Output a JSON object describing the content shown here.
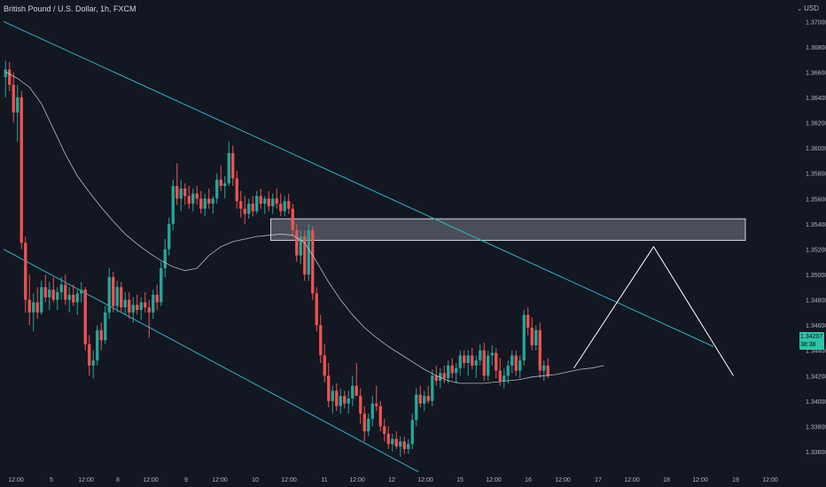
{
  "header": {
    "title": "British Pound / U.S. Dollar, 1h, FXCM",
    "currency": "USD"
  },
  "price_label": {
    "price": "1.34207",
    "countdown": "38:38"
  },
  "colors": {
    "background": "#131722",
    "bull": "#26a69a",
    "bear": "#ef5350",
    "channel": "#2bb6c9",
    "ma": "#d1d4dc",
    "projection": "#ffffff",
    "zone_fill": "#787b86",
    "axis_text": "#b2b5be"
  },
  "chart_data": {
    "type": "candlestick",
    "title": "British Pound / U.S. Dollar, 1h, FXCM",
    "xlabel": "",
    "ylabel": "",
    "ylim": [
      1.3325,
      1.371
    ],
    "y_ticks": [
      "1.33400",
      "1.33600",
      "1.33800",
      "1.34000",
      "1.34200",
      "1.34400",
      "1.34600",
      "1.34800",
      "1.35000",
      "1.35200",
      "1.35400",
      "1.35600",
      "1.35800",
      "1.36000",
      "1.36200",
      "1.36400",
      "1.36600",
      "1.36800",
      "1.37000"
    ],
    "x_ticks": [
      "12:00",
      "5",
      "12:00",
      "8",
      "12:00",
      "9",
      "12:00",
      "10",
      "12:00",
      "11",
      "12:00",
      "12",
      "12:00",
      "15",
      "12:00",
      "16",
      "12:00",
      "17",
      "12:00",
      "18",
      "12:00",
      "19",
      "12:00"
    ],
    "grid": false,
    "series": [
      {
        "style": "candles",
        "values": [
          [
            1.3656,
            1.3669,
            1.364,
            1.3662
          ],
          [
            1.3662,
            1.3668,
            1.3645,
            1.365
          ],
          [
            1.365,
            1.366,
            1.362,
            1.3628
          ],
          [
            1.3628,
            1.365,
            1.3605,
            1.364
          ],
          [
            1.364,
            1.3645,
            1.352,
            1.3525
          ],
          [
            1.3525,
            1.353,
            1.347,
            1.348
          ],
          [
            1.348,
            1.35,
            1.346,
            1.347
          ],
          [
            1.347,
            1.3485,
            1.3455,
            1.3478
          ],
          [
            1.3478,
            1.349,
            1.3465,
            1.347
          ],
          [
            1.347,
            1.3495,
            1.3468,
            1.349
          ],
          [
            1.349,
            1.35,
            1.3478,
            1.3482
          ],
          [
            1.3482,
            1.3494,
            1.3472,
            1.3488
          ],
          [
            1.3488,
            1.3498,
            1.3478,
            1.348
          ],
          [
            1.348,
            1.349,
            1.3472,
            1.3486
          ],
          [
            1.3486,
            1.3498,
            1.348,
            1.3492
          ],
          [
            1.3492,
            1.35,
            1.3476,
            1.348
          ],
          [
            1.348,
            1.349,
            1.347,
            1.3484
          ],
          [
            1.3484,
            1.3492,
            1.3475,
            1.3478
          ],
          [
            1.3478,
            1.3488,
            1.3468,
            1.3485
          ],
          [
            1.3485,
            1.3494,
            1.3478,
            1.3488
          ],
          [
            1.3488,
            1.349,
            1.344,
            1.3445
          ],
          [
            1.3445,
            1.3452,
            1.342,
            1.3428
          ],
          [
            1.3428,
            1.344,
            1.3418,
            1.3432
          ],
          [
            1.3432,
            1.346,
            1.3428,
            1.3456
          ],
          [
            1.3456,
            1.3462,
            1.344,
            1.3448
          ],
          [
            1.3448,
            1.3475,
            1.3445,
            1.347
          ],
          [
            1.347,
            1.3505,
            1.3465,
            1.3498
          ],
          [
            1.3498,
            1.3502,
            1.347,
            1.3475
          ],
          [
            1.3475,
            1.3495,
            1.347,
            1.349
          ],
          [
            1.349,
            1.3494,
            1.347,
            1.3474
          ],
          [
            1.3474,
            1.3486,
            1.3468,
            1.348
          ],
          [
            1.348,
            1.3486,
            1.3465,
            1.347
          ],
          [
            1.347,
            1.3482,
            1.3462,
            1.3476
          ],
          [
            1.3476,
            1.3484,
            1.3468,
            1.3472
          ],
          [
            1.3472,
            1.3482,
            1.3464,
            1.3478
          ],
          [
            1.3478,
            1.3486,
            1.347,
            1.3474
          ],
          [
            1.3474,
            1.348,
            1.345,
            1.347
          ],
          [
            1.347,
            1.3488,
            1.3465,
            1.3484
          ],
          [
            1.3484,
            1.3492,
            1.3472,
            1.3478
          ],
          [
            1.3478,
            1.351,
            1.3475,
            1.3505
          ],
          [
            1.3505,
            1.3528,
            1.3498,
            1.352
          ],
          [
            1.352,
            1.3545,
            1.3515,
            1.354
          ],
          [
            1.354,
            1.3575,
            1.3535,
            1.357
          ],
          [
            1.357,
            1.3588,
            1.3555,
            1.356
          ],
          [
            1.356,
            1.3575,
            1.355,
            1.3568
          ],
          [
            1.3568,
            1.3572,
            1.3555,
            1.3562
          ],
          [
            1.3562,
            1.357,
            1.3552,
            1.3556
          ],
          [
            1.3556,
            1.3568,
            1.355,
            1.3564
          ],
          [
            1.3564,
            1.357,
            1.3555,
            1.356
          ],
          [
            1.356,
            1.3566,
            1.3548,
            1.3552
          ],
          [
            1.3552,
            1.3564,
            1.3546,
            1.356
          ],
          [
            1.356,
            1.3568,
            1.3552,
            1.3556
          ],
          [
            1.3556,
            1.3562,
            1.3548,
            1.356
          ],
          [
            1.356,
            1.358,
            1.3556,
            1.3575
          ],
          [
            1.3575,
            1.3586,
            1.3566,
            1.357
          ],
          [
            1.357,
            1.3578,
            1.356,
            1.3572
          ],
          [
            1.3572,
            1.3605,
            1.357,
            1.3596
          ],
          [
            1.3596,
            1.3602,
            1.357,
            1.3576
          ],
          [
            1.3576,
            1.3582,
            1.3552,
            1.3558
          ],
          [
            1.3558,
            1.3566,
            1.3545,
            1.3552
          ],
          [
            1.3552,
            1.3562,
            1.354,
            1.3548
          ],
          [
            1.3548,
            1.356,
            1.3544,
            1.3556
          ],
          [
            1.3556,
            1.3562,
            1.3546,
            1.355
          ],
          [
            1.355,
            1.3566,
            1.3548,
            1.3562
          ],
          [
            1.3562,
            1.3568,
            1.3552,
            1.3556
          ],
          [
            1.3556,
            1.3562,
            1.3548,
            1.356
          ],
          [
            1.356,
            1.3566,
            1.355,
            1.3554
          ],
          [
            1.3554,
            1.3564,
            1.3548,
            1.356
          ],
          [
            1.356,
            1.3568,
            1.3552,
            1.3556
          ],
          [
            1.3556,
            1.3564,
            1.3546,
            1.355
          ],
          [
            1.355,
            1.3562,
            1.3546,
            1.3558
          ],
          [
            1.3558,
            1.3564,
            1.3548,
            1.3552
          ],
          [
            1.3552,
            1.3556,
            1.353,
            1.3535
          ],
          [
            1.3535,
            1.354,
            1.351,
            1.3515
          ],
          [
            1.3515,
            1.3535,
            1.3508,
            1.353
          ],
          [
            1.353,
            1.3535,
            1.3495,
            1.35
          ],
          [
            1.35,
            1.354,
            1.3495,
            1.3535
          ],
          [
            1.3535,
            1.3538,
            1.348,
            1.3485
          ],
          [
            1.3485,
            1.349,
            1.3455,
            1.346
          ],
          [
            1.346,
            1.3468,
            1.343,
            1.3436
          ],
          [
            1.3436,
            1.3445,
            1.3415,
            1.342
          ],
          [
            1.342,
            1.343,
            1.3395,
            1.34
          ],
          [
            1.34,
            1.3412,
            1.339,
            1.3408
          ],
          [
            1.3408,
            1.3414,
            1.3392,
            1.3396
          ],
          [
            1.3396,
            1.341,
            1.339,
            1.3404
          ],
          [
            1.3404,
            1.3408,
            1.3394,
            1.3398
          ],
          [
            1.3398,
            1.3408,
            1.339,
            1.3402
          ],
          [
            1.3402,
            1.342,
            1.3396,
            1.3412
          ],
          [
            1.3412,
            1.343,
            1.3406,
            1.3404
          ],
          [
            1.3404,
            1.341,
            1.3382,
            1.339
          ],
          [
            1.339,
            1.3396,
            1.3368,
            1.3376
          ],
          [
            1.3376,
            1.339,
            1.3372,
            1.3386
          ],
          [
            1.3386,
            1.3404,
            1.338,
            1.3398
          ],
          [
            1.3398,
            1.3412,
            1.3392,
            1.3396
          ],
          [
            1.3396,
            1.34,
            1.3376,
            1.338
          ],
          [
            1.338,
            1.3386,
            1.3368,
            1.3374
          ],
          [
            1.3374,
            1.338,
            1.3362,
            1.3366
          ],
          [
            1.3366,
            1.3374,
            1.336,
            1.337
          ],
          [
            1.337,
            1.3376,
            1.3362,
            1.3364
          ],
          [
            1.3364,
            1.3372,
            1.3356,
            1.3368
          ],
          [
            1.3368,
            1.3372,
            1.3358,
            1.3362
          ],
          [
            1.3362,
            1.337,
            1.3358,
            1.3366
          ],
          [
            1.3366,
            1.339,
            1.3362,
            1.3385
          ],
          [
            1.3385,
            1.341,
            1.338,
            1.3405
          ],
          [
            1.3405,
            1.3412,
            1.3395,
            1.3398
          ],
          [
            1.3398,
            1.3408,
            1.3392,
            1.3404
          ],
          [
            1.3404,
            1.3412,
            1.3398,
            1.34
          ],
          [
            1.34,
            1.3425,
            1.3396,
            1.342
          ],
          [
            1.342,
            1.3428,
            1.3412,
            1.3416
          ],
          [
            1.3416,
            1.3426,
            1.341,
            1.3422
          ],
          [
            1.3422,
            1.3428,
            1.3414,
            1.3418
          ],
          [
            1.3418,
            1.3432,
            1.3414,
            1.3428
          ],
          [
            1.3428,
            1.3434,
            1.3418,
            1.3422
          ],
          [
            1.3422,
            1.343,
            1.3414,
            1.3426
          ],
          [
            1.3426,
            1.344,
            1.342,
            1.3436
          ],
          [
            1.3436,
            1.344,
            1.3426,
            1.343
          ],
          [
            1.343,
            1.344,
            1.342,
            1.3436
          ],
          [
            1.3436,
            1.3442,
            1.3425,
            1.3428
          ],
          [
            1.3428,
            1.3436,
            1.3418,
            1.3432
          ],
          [
            1.3432,
            1.3445,
            1.3428,
            1.344
          ],
          [
            1.344,
            1.3446,
            1.3416,
            1.342
          ],
          [
            1.342,
            1.344,
            1.3416,
            1.3436
          ],
          [
            1.3436,
            1.3444,
            1.3428,
            1.3438
          ],
          [
            1.3438,
            1.3442,
            1.3418,
            1.3424
          ],
          [
            1.3424,
            1.3434,
            1.3412,
            1.3416
          ],
          [
            1.3416,
            1.3426,
            1.341,
            1.342
          ],
          [
            1.342,
            1.3432,
            1.3414,
            1.3428
          ],
          [
            1.3428,
            1.344,
            1.3422,
            1.3436
          ],
          [
            1.3436,
            1.344,
            1.342,
            1.3424
          ],
          [
            1.3424,
            1.3436,
            1.3418,
            1.3432
          ],
          [
            1.3432,
            1.3472,
            1.3428,
            1.3468
          ],
          [
            1.3468,
            1.3474,
            1.3452,
            1.3458
          ],
          [
            1.3458,
            1.3466,
            1.344,
            1.3444
          ],
          [
            1.3444,
            1.346,
            1.344,
            1.3456
          ],
          [
            1.3456,
            1.3462,
            1.3418,
            1.3424
          ],
          [
            1.3424,
            1.3432,
            1.3416,
            1.3428
          ],
          [
            1.3428,
            1.3434,
            1.3418,
            1.342
          ]
        ]
      },
      {
        "name": "",
        "style": "moving-average",
        "values": [
          1.366,
          1.3655,
          1.3648,
          1.3635,
          1.3615,
          1.3595,
          1.3578,
          1.3565,
          1.3553,
          1.3542,
          1.3532,
          1.3524,
          1.3517,
          1.3511,
          1.3506,
          1.3503,
          1.3505,
          1.3515,
          1.3522,
          1.3526,
          1.3528,
          1.353,
          1.3531,
          1.3532,
          1.3531,
          1.3525,
          1.351,
          1.3494,
          1.348,
          1.3468,
          1.3458,
          1.345,
          1.3443,
          1.3437,
          1.3431,
          1.3425,
          1.342,
          1.3416,
          1.3414,
          1.3414,
          1.3414,
          1.3415,
          1.3416,
          1.3417,
          1.3419,
          1.342,
          1.3421,
          1.3423,
          1.3425,
          1.3426,
          1.3428
        ]
      },
      {
        "name": "",
        "style": "channel-upper",
        "x": [
          0,
          178
        ],
        "y": [
          1.37,
          1.3443
        ]
      },
      {
        "name": "",
        "style": "channel-lower",
        "x": [
          0,
          104
        ],
        "y": [
          1.352,
          1.3344
        ]
      },
      {
        "name": "",
        "style": "projection",
        "x": [
          143,
          163,
          183
        ],
        "y": [
          1.3426,
          1.3522,
          1.342
        ]
      }
    ],
    "annotations": [
      {
        "type": "zone",
        "x": [
          67,
          186
        ],
        "y": [
          1.3527,
          1.3544
        ]
      }
    ]
  }
}
